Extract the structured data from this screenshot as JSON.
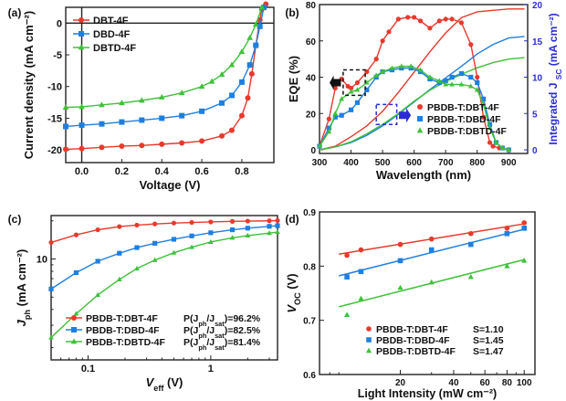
{
  "chart_data": [
    {
      "id": "a",
      "type": "line",
      "panel_label": "(a)",
      "xlabel": "Voltage (V)",
      "ylabel": "Current density (mA cm⁻²)",
      "xlim": [
        -0.08,
        0.96
      ],
      "ylim": [
        -22,
        2.5
      ],
      "xticks": [
        0.0,
        0.2,
        0.4,
        0.6,
        0.8
      ],
      "xtick_labels": [
        "0.0",
        "0.2",
        "0.4",
        "0.6",
        "0.8"
      ],
      "yticks": [
        0,
        -5,
        -10,
        -15,
        -20
      ],
      "ytick_labels": [
        "0",
        "-5",
        "-10",
        "-15",
        "-20"
      ],
      "legend_position": "top-left",
      "series": [
        {
          "name": "DBT-4F",
          "color": "#e8392d",
          "marker": "circle",
          "x": [
            -0.08,
            0.0,
            0.1,
            0.2,
            0.3,
            0.4,
            0.5,
            0.6,
            0.7,
            0.75,
            0.8,
            0.83,
            0.85,
            0.87,
            0.89,
            0.9,
            0.92
          ],
          "y": [
            -19.9,
            -19.8,
            -19.6,
            -19.4,
            -19.3,
            -19.1,
            -18.9,
            -18.6,
            -17.8,
            -16.9,
            -14.6,
            -11.8,
            -8.0,
            -3.5,
            0.5,
            2.2,
            3.0
          ]
        },
        {
          "name": "DBD-4F",
          "color": "#1f7fe0",
          "marker": "square",
          "x": [
            -0.08,
            0.0,
            0.1,
            0.2,
            0.3,
            0.4,
            0.5,
            0.6,
            0.7,
            0.75,
            0.8,
            0.84,
            0.87,
            0.89,
            0.91
          ],
          "y": [
            -16.3,
            -16.1,
            -15.9,
            -15.6,
            -15.3,
            -15.0,
            -14.6,
            -13.9,
            -12.6,
            -11.4,
            -9.3,
            -6.6,
            -3.5,
            -0.5,
            2.5
          ]
        },
        {
          "name": "DBTD-4F",
          "color": "#3fc13a",
          "marker": "triangle",
          "x": [
            -0.08,
            0.0,
            0.1,
            0.2,
            0.3,
            0.4,
            0.5,
            0.6,
            0.65,
            0.7,
            0.75,
            0.8,
            0.84,
            0.87,
            0.9
          ],
          "y": [
            -13.3,
            -13.2,
            -12.9,
            -12.6,
            -12.2,
            -11.7,
            -11.0,
            -10.0,
            -9.2,
            -8.1,
            -6.6,
            -4.5,
            -2.3,
            -0.2,
            2.5
          ]
        }
      ]
    },
    {
      "id": "b",
      "type": "line",
      "panel_label": "(b)",
      "xlabel": "Wavelength (nm)",
      "ylabel": "EQE (%)",
      "ylabel_right": "Integrated J",
      "ylabel_right_sub": "SC",
      "ylabel_right_unit": "(mA cm⁻²)",
      "xlim": [
        300,
        960
      ],
      "ylim": [
        -2,
        80
      ],
      "ylim_right": [
        -0.5,
        20
      ],
      "xticks": [
        300,
        400,
        500,
        600,
        700,
        800,
        900
      ],
      "xtick_labels": [
        "300",
        "400",
        "500",
        "600",
        "700",
        "800",
        "900"
      ],
      "yticks": [
        0,
        20,
        40,
        60,
        80
      ],
      "ytick_labels": [
        "0",
        "20",
        "40",
        "60",
        "80"
      ],
      "yticks_right": [
        0,
        5,
        10,
        15,
        20
      ],
      "ytick_labels_right": [
        "0",
        "5",
        "10",
        "15",
        "20"
      ],
      "legend_position": "bottom-right",
      "series": [
        {
          "name": "PBDB-T:DBT-4F",
          "color": "#e8392d",
          "marker": "circle",
          "x": [
            300,
            330,
            350,
            370,
            390,
            400,
            420,
            450,
            480,
            500,
            520,
            550,
            580,
            600,
            620,
            650,
            680,
            700,
            720,
            750,
            780,
            800,
            820,
            840,
            850,
            870,
            900
          ],
          "y": [
            2,
            17,
            34,
            39,
            35,
            34,
            37,
            43,
            50,
            60,
            65,
            72,
            73,
            73,
            71,
            67,
            71,
            72,
            72,
            70,
            58,
            40,
            18,
            4,
            2,
            1,
            0
          ]
        },
        {
          "name": "PBDB-T:DBD-4F",
          "color": "#1f7fe0",
          "marker": "square",
          "x": [
            300,
            330,
            350,
            370,
            400,
            420,
            450,
            480,
            500,
            530,
            560,
            590,
            620,
            650,
            680,
            700,
            720,
            750,
            780,
            800,
            820,
            840,
            860,
            880,
            900
          ],
          "y": [
            2,
            12,
            18,
            19,
            22,
            26,
            33,
            40,
            43,
            44,
            45,
            45,
            43,
            39,
            37,
            38,
            40,
            42,
            40,
            37,
            28,
            14,
            4,
            1,
            0
          ]
        },
        {
          "name": "PBDB-T:DBTD-4F",
          "color": "#3fc13a",
          "marker": "triangle",
          "x": [
            300,
            330,
            350,
            370,
            400,
            420,
            450,
            480,
            500,
            530,
            560,
            590,
            620,
            650,
            680,
            700,
            720,
            750,
            780,
            800,
            820,
            840,
            860,
            880,
            900
          ],
          "y": [
            2,
            10,
            20,
            28,
            32,
            33,
            37,
            41,
            43,
            45,
            46,
            46,
            44,
            40,
            38,
            36,
            36,
            36,
            35,
            33,
            25,
            12,
            4,
            1,
            0
          ]
        }
      ],
      "series_right": [
        {
          "name": "PBDB-T:DBT-4F integrated",
          "color": "#e8392d",
          "x": [
            300,
            350,
            400,
            450,
            500,
            550,
            600,
            650,
            700,
            750,
            800,
            850,
            900,
            950
          ],
          "y": [
            0,
            0.5,
            1.8,
            3.3,
            5.3,
            7.9,
            10.7,
            13.5,
            16.1,
            18.2,
            19.0,
            19.2,
            19.4,
            19.4
          ]
        },
        {
          "name": "PBDB-T:DBD-4F integrated",
          "color": "#1f7fe0",
          "x": [
            300,
            350,
            400,
            450,
            500,
            550,
            600,
            650,
            700,
            750,
            800,
            850,
            900,
            950
          ],
          "y": [
            0,
            0.4,
            1.0,
            2.0,
            3.3,
            4.9,
            6.6,
            8.3,
            9.9,
            11.5,
            13.2,
            14.5,
            15.4,
            15.6
          ]
        },
        {
          "name": "PBDB-T:DBTD-4F integrated",
          "color": "#3fc13a",
          "x": [
            300,
            350,
            400,
            450,
            500,
            550,
            600,
            650,
            700,
            750,
            800,
            850,
            900,
            950
          ],
          "y": [
            0,
            0.4,
            1.1,
            2.2,
            3.5,
            5.0,
            6.7,
            8.2,
            9.4,
            10.4,
            11.3,
            12.0,
            12.5,
            12.7
          ]
        }
      ]
    },
    {
      "id": "c",
      "type": "line",
      "panel_label": "(c)",
      "xlabel": "V",
      "xlabel_sub": "eff",
      "xlabel_unit": "(V)",
      "ylabel": "J",
      "ylabel_sub": "ph",
      "ylabel_unit": "(mA cm⁻²)",
      "xscale": "log",
      "yscale": "log",
      "xlim": [
        0.05,
        3.5
      ],
      "ylim": [
        1.6,
        22
      ],
      "xticks": [
        0.1,
        1
      ],
      "xtick_labels": [
        "0.1",
        "1"
      ],
      "yticks": [
        10
      ],
      "ytick_labels": [
        "10"
      ],
      "legend_position": "bottom-right",
      "series": [
        {
          "name": "PBDB-T:DBT-4F",
          "note": "P(J",
          "note_sub": "ph",
          "note_mid": "/J",
          "note_sub2": "sat",
          "note_end": ")=96.2%",
          "color": "#e8392d",
          "marker": "circle",
          "x": [
            0.05,
            0.08,
            0.12,
            0.18,
            0.25,
            0.35,
            0.5,
            0.7,
            1.0,
            1.5,
            2.0,
            3.0,
            3.5
          ],
          "y": [
            13.5,
            15.5,
            17.0,
            18.0,
            18.5,
            18.9,
            19.2,
            19.4,
            19.6,
            19.8,
            19.9,
            20.0,
            20.1
          ]
        },
        {
          "name": "PBDB-T:DBD-4F",
          "note": "P(J",
          "note_sub": "ph",
          "note_mid": "/J",
          "note_sub2": "sat",
          "note_end": ")=82.5%",
          "color": "#1f7fe0",
          "marker": "square",
          "x": [
            0.05,
            0.08,
            0.12,
            0.18,
            0.25,
            0.35,
            0.5,
            0.7,
            1.0,
            1.5,
            2.0,
            3.0,
            3.5
          ],
          "y": [
            5.8,
            7.8,
            9.6,
            11.1,
            12.3,
            13.3,
            14.3,
            15.2,
            16.1,
            17.0,
            17.5,
            18.1,
            18.3
          ]
        },
        {
          "name": "PBDB-T:DBTD-4F",
          "note": "P(J",
          "note_sub": "ph",
          "note_mid": "/J",
          "note_sub2": "sat",
          "note_end": ")=81.4%",
          "color": "#3fc13a",
          "marker": "triangle",
          "x": [
            0.05,
            0.08,
            0.12,
            0.18,
            0.25,
            0.35,
            0.5,
            0.7,
            1.0,
            1.5,
            2.0,
            3.0,
            3.5
          ],
          "y": [
            2.4,
            3.7,
            5.2,
            6.9,
            8.4,
            9.8,
            11.2,
            12.4,
            13.6,
            14.7,
            15.3,
            16.0,
            16.3
          ]
        }
      ]
    },
    {
      "id": "d",
      "type": "scatter",
      "panel_label": "(d)",
      "xlabel": "Light Intensity (mW cm⁻²)",
      "ylabel": "V",
      "ylabel_sub": "OC",
      "ylabel_unit": "(V)",
      "xscale": "log",
      "xlim": [
        7,
        115
      ],
      "ylim": [
        0.6,
        0.9
      ],
      "xticks": [
        20,
        40,
        60,
        80,
        100
      ],
      "xtick_labels": [
        "20",
        "40",
        "60",
        "80",
        "100"
      ],
      "yticks": [
        0.6,
        0.7,
        0.8,
        0.9
      ],
      "ytick_labels": [
        "0.6",
        "0.7",
        "0.8",
        "0.9"
      ],
      "legend_position": "bottom-right",
      "series": [
        {
          "name": "PBDB-T:DBT-4F",
          "slope_label": "S=1.10",
          "color": "#e8392d",
          "marker": "circle",
          "x": [
            10,
            12,
            20,
            30,
            50,
            80,
            100
          ],
          "y": [
            0.82,
            0.83,
            0.84,
            0.85,
            0.86,
            0.87,
            0.88
          ],
          "fit": [
            [
              9,
              0.822
            ],
            [
              100,
              0.878
            ]
          ]
        },
        {
          "name": "PBDB-T:DBD-4F",
          "slope_label": "S=1.45",
          "color": "#1f7fe0",
          "marker": "square",
          "x": [
            10,
            12,
            20,
            30,
            50,
            80,
            100
          ],
          "y": [
            0.78,
            0.79,
            0.81,
            0.83,
            0.84,
            0.86,
            0.87
          ],
          "fit": [
            [
              9,
              0.782
            ],
            [
              100,
              0.868
            ]
          ]
        },
        {
          "name": "PBDB-T:DBTD-4F",
          "slope_label": "S=1.47",
          "color": "#3fc13a",
          "marker": "triangle",
          "x": [
            10,
            12,
            20,
            30,
            50,
            80,
            100
          ],
          "y": [
            0.71,
            0.74,
            0.76,
            0.77,
            0.78,
            0.8,
            0.81
          ],
          "fit": [
            [
              9,
              0.725
            ],
            [
              100,
              0.812
            ]
          ]
        }
      ]
    }
  ]
}
